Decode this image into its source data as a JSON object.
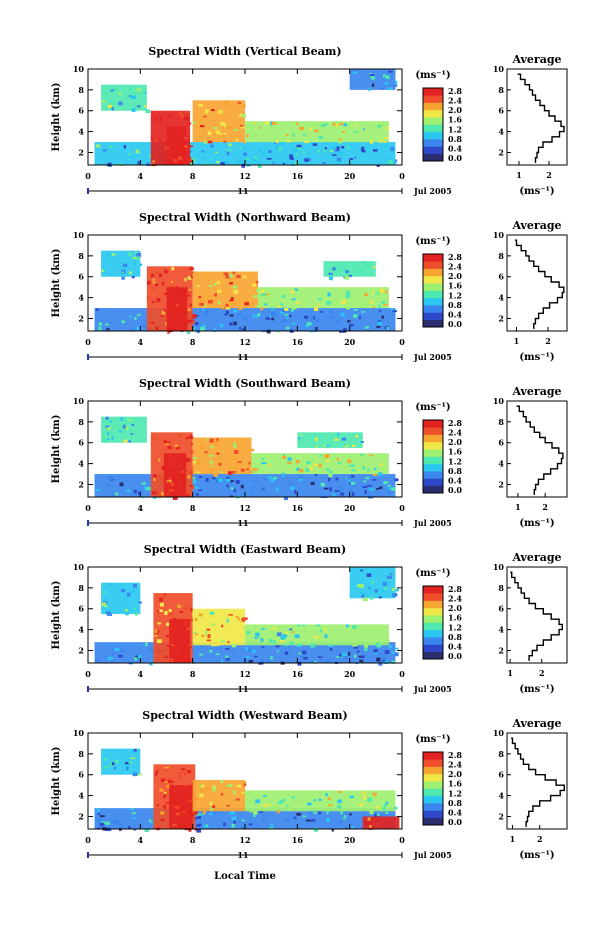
{
  "figure": {
    "xlabel": "Local Time",
    "date_label": "Jul 2005",
    "day_label": "11"
  },
  "colorbar": {
    "unit": "(ms⁻¹)",
    "ticks": [
      "2.8",
      "2.4",
      "2.0",
      "1.6",
      "1.2",
      "0.8",
      "0.4",
      "0.0"
    ],
    "colors": [
      "#2a2e6e",
      "#2d48c8",
      "#3a86ee",
      "#2ac8f0",
      "#4ee8b0",
      "#9ef070",
      "#f0e848",
      "#f7a531",
      "#ef4e2a",
      "#e32321"
    ]
  },
  "chart_data": [
    {
      "type": "heatmap",
      "beam": "vertical",
      "title": "Spectral Width (Vertical Beam)",
      "xlabel": "Local Time",
      "ylabel": "Height (km)",
      "xticks": [
        "0",
        "4",
        "8",
        "12",
        "16",
        "20",
        "0"
      ],
      "yticks": [
        "10",
        "8",
        "6",
        "4",
        "2"
      ],
      "xlim": [
        0,
        24
      ],
      "ylim": [
        0.8,
        10
      ],
      "clim": [
        0.0,
        2.8
      ],
      "blobs": [
        {
          "x": [
            0.5,
            23.5
          ],
          "y": [
            0.8,
            3.0
          ],
          "v": 0.9
        },
        {
          "x": [
            4.8,
            7.8
          ],
          "y": [
            0.8,
            6.0
          ],
          "v": 2.6
        },
        {
          "x": [
            6.0,
            7.5
          ],
          "y": [
            0.8,
            4.5
          ],
          "v": 2.8
        },
        {
          "x": [
            1.0,
            4.5
          ],
          "y": [
            6.0,
            8.5
          ],
          "v": 1.2
        },
        {
          "x": [
            8.0,
            12.0
          ],
          "y": [
            3.0,
            7.0
          ],
          "v": 2.0
        },
        {
          "x": [
            12.0,
            23.0
          ],
          "y": [
            3.0,
            5.0
          ],
          "v": 1.5
        },
        {
          "x": [
            20.0,
            23.5
          ],
          "y": [
            8.0,
            10.0
          ],
          "v": 0.8
        }
      ],
      "profile": {
        "title": "Average",
        "xlabel": "(ms⁻¹)",
        "xticks": [
          "1",
          "2"
        ],
        "yticks": [
          "10",
          "8",
          "6",
          "4",
          "2"
        ],
        "xlim": [
          0.6,
          2.6
        ],
        "ylim": [
          0.8,
          10
        ],
        "heights": [
          1.0,
          1.5,
          2.0,
          2.5,
          3.0,
          3.5,
          4.0,
          4.5,
          5.0,
          5.5,
          6.0,
          6.5,
          7.0,
          7.5,
          8.0,
          8.5,
          9.0,
          9.5
        ],
        "values": [
          1.55,
          1.6,
          1.65,
          1.8,
          2.1,
          2.35,
          2.5,
          2.4,
          2.2,
          2.0,
          1.85,
          1.7,
          1.55,
          1.45,
          1.35,
          1.2,
          1.05,
          0.95
        ]
      }
    },
    {
      "type": "heatmap",
      "beam": "northward",
      "title": "Spectral Width (Northward Beam)",
      "xlabel": "Local Time",
      "ylabel": "Height (km)",
      "xticks": [
        "0",
        "4",
        "8",
        "12",
        "16",
        "20",
        "0"
      ],
      "yticks": [
        "10",
        "8",
        "6",
        "4",
        "2"
      ],
      "xlim": [
        0,
        24
      ],
      "ylim": [
        0.8,
        10
      ],
      "clim": [
        0.0,
        2.8
      ],
      "blobs": [
        {
          "x": [
            0.5,
            23.5
          ],
          "y": [
            0.8,
            3.0
          ],
          "v": 0.8
        },
        {
          "x": [
            4.5,
            8.0
          ],
          "y": [
            0.8,
            7.0
          ],
          "v": 2.5
        },
        {
          "x": [
            6.0,
            7.6
          ],
          "y": [
            0.8,
            5.0
          ],
          "v": 2.8
        },
        {
          "x": [
            1.0,
            4.0
          ],
          "y": [
            6.0,
            8.5
          ],
          "v": 1.1
        },
        {
          "x": [
            8.0,
            13.0
          ],
          "y": [
            3.0,
            6.5
          ],
          "v": 2.0
        },
        {
          "x": [
            13.0,
            23.0
          ],
          "y": [
            3.0,
            5.0
          ],
          "v": 1.5
        },
        {
          "x": [
            18.0,
            22.0
          ],
          "y": [
            6.0,
            7.5
          ],
          "v": 1.2
        }
      ],
      "profile": {
        "title": "Average",
        "xlabel": "(ms⁻¹)",
        "xticks": [
          "1",
          "2"
        ],
        "yticks": [
          "10",
          "8",
          "6",
          "4",
          "2"
        ],
        "xlim": [
          0.7,
          2.6
        ],
        "ylim": [
          0.8,
          10
        ],
        "heights": [
          1.0,
          1.5,
          2.0,
          2.5,
          3.0,
          3.5,
          4.0,
          4.5,
          5.0,
          5.5,
          6.0,
          6.5,
          7.0,
          7.5,
          8.0,
          8.5,
          9.0,
          9.5
        ],
        "values": [
          1.55,
          1.6,
          1.7,
          1.85,
          2.05,
          2.3,
          2.45,
          2.5,
          2.35,
          2.1,
          1.9,
          1.7,
          1.55,
          1.4,
          1.3,
          1.15,
          1.0,
          0.95
        ]
      }
    },
    {
      "type": "heatmap",
      "beam": "southward",
      "title": "Spectral Width (Southward Beam)",
      "xlabel": "Local Time",
      "ylabel": "Height (km)",
      "xticks": [
        "0",
        "4",
        "8",
        "12",
        "16",
        "20",
        "0"
      ],
      "yticks": [
        "10",
        "8",
        "6",
        "4",
        "2"
      ],
      "xlim": [
        0,
        24
      ],
      "ylim": [
        0.8,
        10
      ],
      "clim": [
        0.0,
        2.8
      ],
      "blobs": [
        {
          "x": [
            0.5,
            23.5
          ],
          "y": [
            0.8,
            3.0
          ],
          "v": 0.8
        },
        {
          "x": [
            4.8,
            8.0
          ],
          "y": [
            0.8,
            7.0
          ],
          "v": 2.5
        },
        {
          "x": [
            5.8,
            7.5
          ],
          "y": [
            0.8,
            5.0
          ],
          "v": 2.8
        },
        {
          "x": [
            1.0,
            4.5
          ],
          "y": [
            6.0,
            8.5
          ],
          "v": 1.2
        },
        {
          "x": [
            8.0,
            12.5
          ],
          "y": [
            3.0,
            6.5
          ],
          "v": 2.0
        },
        {
          "x": [
            12.5,
            23.0
          ],
          "y": [
            3.0,
            5.0
          ],
          "v": 1.6
        },
        {
          "x": [
            16.0,
            21.0
          ],
          "y": [
            5.5,
            7.0
          ],
          "v": 1.3
        }
      ],
      "profile": {
        "title": "Average",
        "xlabel": "(ms⁻¹)",
        "xticks": [
          "1",
          "2"
        ],
        "yticks": [
          "10",
          "8",
          "6",
          "4",
          "2"
        ],
        "xlim": [
          0.6,
          2.8
        ],
        "ylim": [
          0.8,
          10
        ],
        "heights": [
          1.0,
          1.5,
          2.0,
          2.5,
          3.0,
          3.5,
          4.0,
          4.5,
          5.0,
          5.5,
          6.0,
          6.5,
          7.0,
          7.5,
          8.0,
          8.5,
          9.0,
          9.5
        ],
        "values": [
          1.6,
          1.65,
          1.75,
          1.95,
          2.2,
          2.45,
          2.6,
          2.65,
          2.5,
          2.25,
          2.0,
          1.8,
          1.6,
          1.45,
          1.3,
          1.2,
          1.05,
          0.95
        ]
      }
    },
    {
      "type": "heatmap",
      "beam": "eastward",
      "title": "Spectral Width (Eastward Beam)",
      "xlabel": "Local Time",
      "ylabel": "Height (km)",
      "xticks": [
        "0",
        "4",
        "8",
        "12",
        "16",
        "20",
        "0"
      ],
      "yticks": [
        "10",
        "8",
        "6",
        "4",
        "2"
      ],
      "xlim": [
        0,
        24
      ],
      "ylim": [
        0.8,
        10
      ],
      "clim": [
        0.0,
        2.8
      ],
      "blobs": [
        {
          "x": [
            0.5,
            23.5
          ],
          "y": [
            0.8,
            2.8
          ],
          "v": 0.8
        },
        {
          "x": [
            5.0,
            8.0
          ],
          "y": [
            0.8,
            7.5
          ],
          "v": 2.4
        },
        {
          "x": [
            6.2,
            7.8
          ],
          "y": [
            0.8,
            5.0
          ],
          "v": 2.8
        },
        {
          "x": [
            1.0,
            4.0
          ],
          "y": [
            5.5,
            8.5
          ],
          "v": 1.1
        },
        {
          "x": [
            8.0,
            12.0
          ],
          "y": [
            2.5,
            6.0
          ],
          "v": 1.9
        },
        {
          "x": [
            12.0,
            23.0
          ],
          "y": [
            2.5,
            4.5
          ],
          "v": 1.4
        },
        {
          "x": [
            20.0,
            23.5
          ],
          "y": [
            7.0,
            10.0
          ],
          "v": 0.9
        }
      ],
      "profile": {
        "title": "Average",
        "xlabel": "(ms⁻¹)",
        "xticks": [
          "1",
          "2"
        ],
        "yticks": [
          "10",
          "8",
          "6",
          "4",
          "2"
        ],
        "xlim": [
          0.9,
          2.8
        ],
        "ylim": [
          0.8,
          10
        ],
        "heights": [
          1.0,
          1.5,
          2.0,
          2.5,
          3.0,
          3.5,
          4.0,
          4.5,
          5.0,
          5.5,
          6.0,
          6.5,
          7.0,
          7.5,
          8.0,
          8.5,
          9.0,
          9.5
        ],
        "values": [
          1.6,
          1.7,
          1.85,
          2.05,
          2.3,
          2.55,
          2.65,
          2.55,
          2.3,
          2.05,
          1.8,
          1.6,
          1.45,
          1.35,
          1.25,
          1.15,
          1.05,
          1.0
        ]
      }
    },
    {
      "type": "heatmap",
      "beam": "westward",
      "title": "Spectral Width (Westward Beam)",
      "xlabel": "Local Time",
      "ylabel": "Height (km)",
      "xticks": [
        "0",
        "4",
        "8",
        "12",
        "16",
        "20",
        "0"
      ],
      "yticks": [
        "10",
        "8",
        "6",
        "4",
        "2"
      ],
      "xlim": [
        0,
        24
      ],
      "ylim": [
        0.8,
        10
      ],
      "clim": [
        0.0,
        2.8
      ],
      "blobs": [
        {
          "x": [
            0.5,
            23.5
          ],
          "y": [
            0.8,
            2.8
          ],
          "v": 0.8
        },
        {
          "x": [
            5.0,
            8.2
          ],
          "y": [
            0.8,
            7.0
          ],
          "v": 2.5
        },
        {
          "x": [
            6.2,
            8.0
          ],
          "y": [
            0.8,
            5.0
          ],
          "v": 2.8
        },
        {
          "x": [
            1.0,
            4.0
          ],
          "y": [
            6.0,
            8.5
          ],
          "v": 1.0
        },
        {
          "x": [
            8.0,
            12.0
          ],
          "y": [
            2.5,
            5.5
          ],
          "v": 2.0
        },
        {
          "x": [
            12.0,
            23.5
          ],
          "y": [
            2.5,
            4.5
          ],
          "v": 1.5
        },
        {
          "x": [
            21.0,
            23.8
          ],
          "y": [
            0.8,
            2.0
          ],
          "v": 2.6
        }
      ],
      "profile": {
        "title": "Average",
        "xlabel": "(ms⁻¹)",
        "xticks": [
          "1",
          "2"
        ],
        "yticks": [
          "10",
          "8",
          "6",
          "4",
          "2"
        ],
        "xlim": [
          0.8,
          3.0
        ],
        "ylim": [
          0.8,
          10
        ],
        "heights": [
          1.0,
          1.5,
          2.0,
          2.5,
          3.0,
          3.5,
          4.0,
          4.5,
          5.0,
          5.5,
          6.0,
          6.5,
          7.0,
          7.5,
          8.0,
          8.5,
          9.0,
          9.5
        ],
        "values": [
          1.5,
          1.55,
          1.6,
          1.75,
          2.0,
          2.4,
          2.75,
          2.9,
          2.6,
          2.2,
          1.85,
          1.6,
          1.4,
          1.3,
          1.2,
          1.1,
          1.0,
          0.95
        ]
      }
    }
  ]
}
